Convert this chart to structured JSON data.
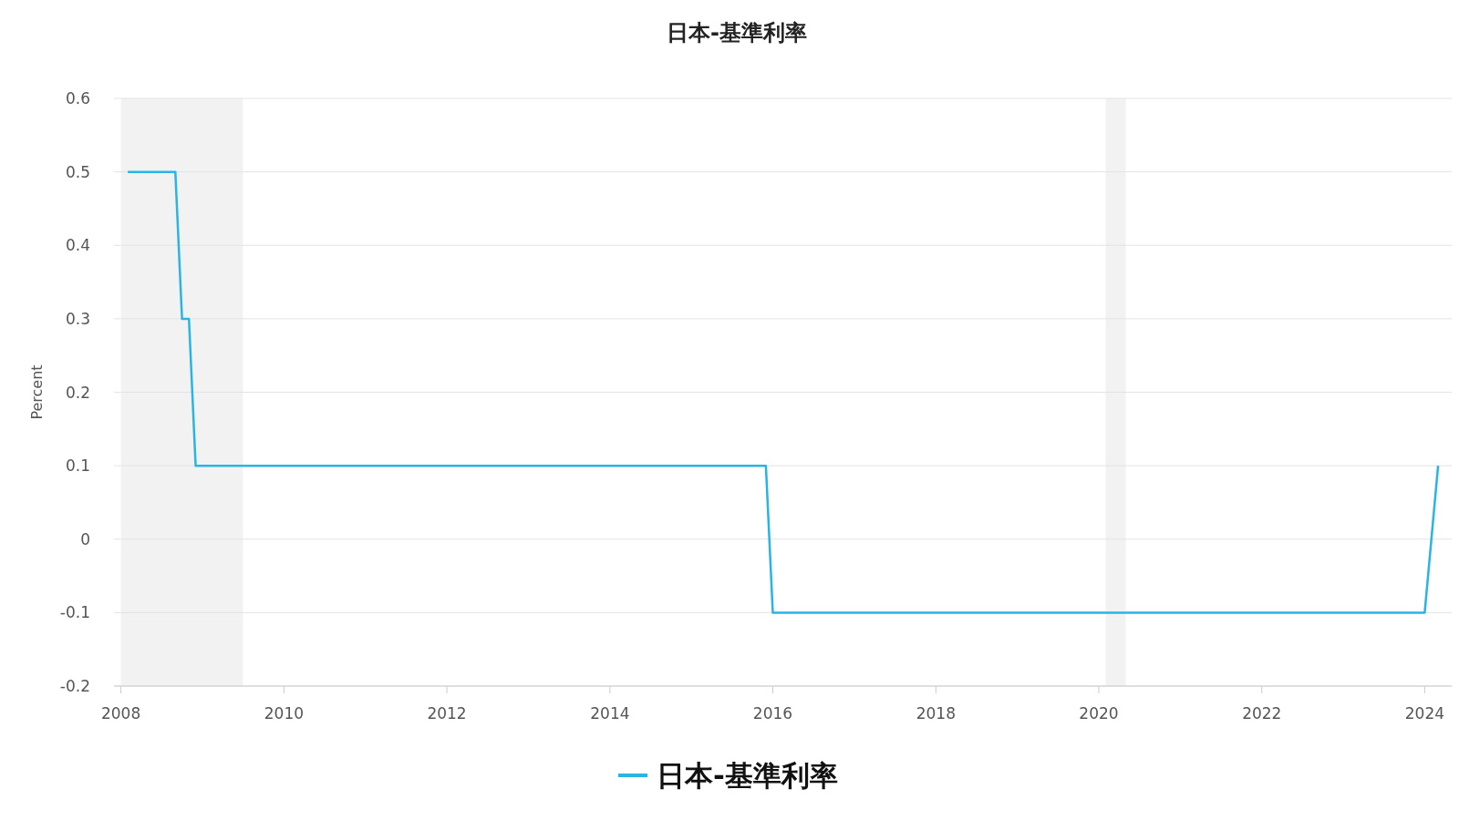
{
  "chart_data": {
    "type": "line",
    "title": "日本-基準利率",
    "ylabel": "Percent",
    "x": [
      "2008-02",
      "2008-09",
      "2008-10",
      "2008-11",
      "2008-12",
      "2015-12",
      "2016-01",
      "2024-01",
      "2024-03"
    ],
    "series": [
      {
        "name": "日本-基準利率",
        "color": "#29b4e3",
        "values": [
          0.5,
          0.5,
          0.3,
          0.3,
          0.1,
          0.1,
          -0.1,
          -0.1,
          0.1
        ]
      }
    ],
    "xlim": [
      "2007-12",
      "2024-05"
    ],
    "xticks": [
      {
        "value": "2008",
        "label": "2008"
      },
      {
        "value": "2010",
        "label": "2010"
      },
      {
        "value": "2012",
        "label": "2012"
      },
      {
        "value": "2014",
        "label": "2014"
      },
      {
        "value": "2016",
        "label": "2016"
      },
      {
        "value": "2018",
        "label": "2018"
      },
      {
        "value": "2020",
        "label": "2020"
      },
      {
        "value": "2022",
        "label": "2022"
      },
      {
        "value": "2024",
        "label": "2024"
      }
    ],
    "ylim": [
      -0.2,
      0.6
    ],
    "yticks": [
      -0.2,
      -0.1,
      0,
      0.1,
      0.2,
      0.3,
      0.4,
      0.5,
      0.6
    ],
    "bands": [
      {
        "axis": "x",
        "from": "2008-01",
        "to": "2009-07",
        "color": "#f2f2f2"
      },
      {
        "axis": "x",
        "from": "2020-02",
        "to": "2020-05",
        "color": "#f2f2f2"
      }
    ],
    "grid": "y",
    "legend": "bottom",
    "marker": "none",
    "line_style": "solid"
  }
}
